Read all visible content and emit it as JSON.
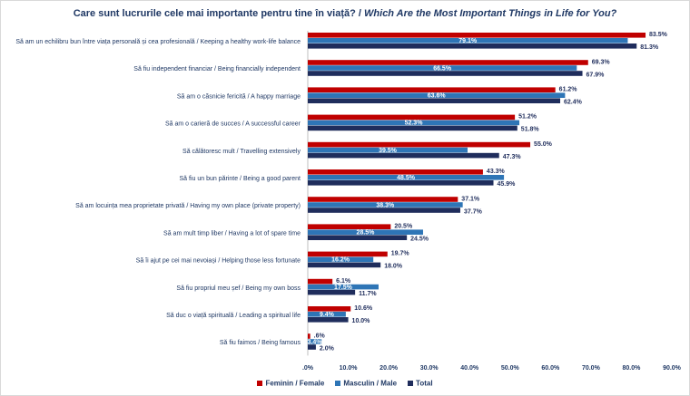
{
  "title": {
    "ro": "Care sunt lucrurile cele mai importante pentru tine în viață?",
    "separator": " / ",
    "en": "Which Are the Most Important Things in Life for You?"
  },
  "chart_data": {
    "type": "bar",
    "orientation": "horizontal",
    "xlim": [
      0,
      90
    ],
    "ticks": [
      ".0%",
      "10.0%",
      "20.0%",
      "30.0%",
      "40.0%",
      "50.0%",
      "60.0%",
      "70.0%",
      "80.0%",
      "90.0%"
    ],
    "tick_values": [
      0,
      10,
      20,
      30,
      40,
      50,
      60,
      70,
      80,
      90
    ],
    "grid": false,
    "legend_position": "bottom",
    "categories": [
      "Să am un echilibru bun între viața personală și cea profesională / Keeping a healthy work-life balance",
      "Să fiu independent financiar / Being financially independent",
      "Să am o căsnicie fericită / A happy marriage",
      "Să am o carieră de succes  / A successful career",
      "Să călătoresc mult / Travelling extensively",
      "Să fiu un bun părinte / Being a good parent",
      "Să am locuința mea proprietate privată / Having my own place (private property)",
      "Să am mult timp liber / Having a lot of spare time",
      "Să îi ajut pe cei mai nevoiași / Helping those less fortunate",
      "Să fiu propriul meu șef / Being my own boss",
      "Să duc o viață spirituală / Leading a spiritual life",
      "Să fiu faimos / Being famous"
    ],
    "series": [
      {
        "name": "Feminin / Female",
        "color": "#c00000",
        "values": [
          83.5,
          69.3,
          61.2,
          51.2,
          55.0,
          43.3,
          37.1,
          20.5,
          19.7,
          6.1,
          10.6,
          0.6
        ],
        "labels": [
          "83.5%",
          "69.3%",
          "61.2%",
          "51.2%",
          "55.0%",
          "43.3%",
          "37.1%",
          "20.5%",
          "19.7%",
          "6.1%",
          "10.6%",
          ".6%"
        ]
      },
      {
        "name": "Masculin / Male",
        "color": "#2e75b6",
        "values": [
          79.1,
          66.5,
          63.6,
          52.3,
          39.5,
          48.5,
          38.3,
          28.5,
          16.2,
          17.5,
          9.4,
          3.4
        ],
        "labels": [
          "79.1%",
          "66.5%",
          "63.6%",
          "52.3%",
          "39.5%",
          "48.5%",
          "38.3%",
          "28.5%",
          "16.2%",
          "17.5%",
          "9.4%",
          "3.4%"
        ]
      },
      {
        "name": "Total",
        "color": "#1f2d5c",
        "values": [
          81.3,
          67.9,
          62.4,
          51.8,
          47.3,
          45.9,
          37.7,
          24.5,
          18.0,
          11.7,
          10.0,
          2.0
        ],
        "labels": [
          "81.3%",
          "67.9%",
          "62.4%",
          "51.8%",
          "47.3%",
          "45.9%",
          "37.7%",
          "24.5%",
          "18.0%",
          "11.7%",
          "10.0%",
          "2.0%"
        ]
      }
    ]
  }
}
